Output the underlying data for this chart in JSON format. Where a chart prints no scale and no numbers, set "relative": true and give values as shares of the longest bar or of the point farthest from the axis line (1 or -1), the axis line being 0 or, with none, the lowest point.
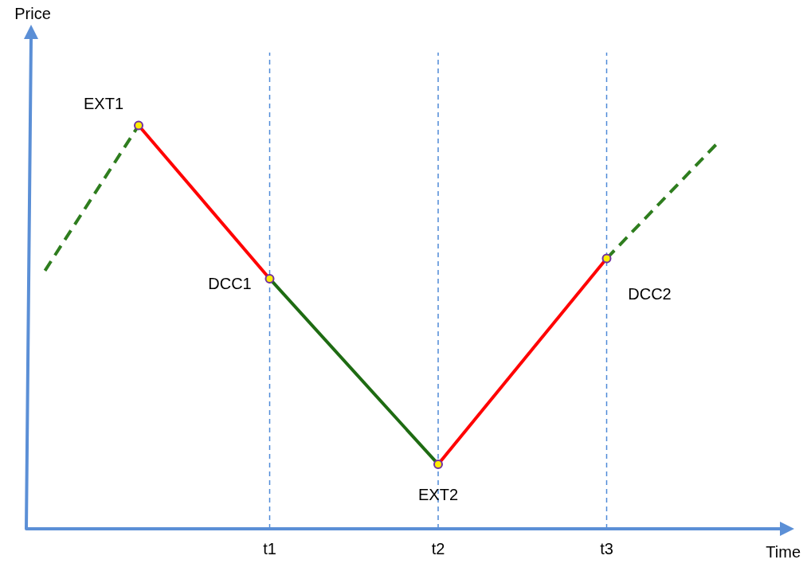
{
  "chart_data": {
    "type": "line",
    "relative": true,
    "xlabel": "Time",
    "categories": [
      null,
      null,
      null,
      null,
      null,
      null,
      null,
      null,
      null,
      null,
      null,
      null,
      null,
      "t1",
      null,
      null,
      null,
      null,
      null,
      null,
      null,
      null,
      "t2",
      null,
      null,
      null,
      null,
      null,
      null,
      null,
      null,
      "t3",
      null,
      null,
      null,
      null,
      null,
      null,
      null,
      null,
      null
    ],
    "grid": false,
    "legend": false,
    "tick_labels": "x",
    "ref_lines": [
      {
        "axis": "x",
        "value": "t1",
        "color": "#4f8ad8",
        "line_style": "dashed"
      },
      {
        "axis": "x",
        "value": "t2",
        "color": "#4f8ad8",
        "line_style": "dashed"
      },
      {
        "axis": "x",
        "value": "t3",
        "color": "#4f8ad8",
        "line_style": "dashed"
      }
    ],
    "series": [
      {
        "color": "#2e7d1e",
        "line_style": "dashed",
        "marker": "none",
        "values": [
          null,
          0.64,
          null,
          null,
          null,
          null,
          1,
          null,
          null,
          null,
          null,
          null,
          null,
          null,
          null,
          null,
          null,
          null,
          null,
          null,
          null,
          null,
          null,
          null,
          null,
          null,
          null,
          null,
          null,
          null,
          null,
          null,
          null,
          null,
          null,
          null,
          null,
          null,
          null,
          null,
          null
        ]
      },
      {
        "color": "#ff0000",
        "line_style": "solid",
        "marker": "none",
        "values": [
          null,
          null,
          null,
          null,
          null,
          null,
          1,
          null,
          null,
          null,
          null,
          null,
          null,
          0.62,
          null,
          null,
          null,
          null,
          null,
          null,
          null,
          null,
          null,
          null,
          null,
          null,
          null,
          null,
          null,
          null,
          null,
          null,
          null,
          null,
          null,
          null,
          null,
          null,
          null,
          null,
          null
        ]
      },
      {
        "color": "#1e6b12",
        "line_style": "solid",
        "marker": "none",
        "values": [
          null,
          null,
          null,
          null,
          null,
          null,
          null,
          null,
          null,
          null,
          null,
          null,
          null,
          0.62,
          null,
          null,
          null,
          null,
          null,
          null,
          null,
          null,
          0.16,
          null,
          null,
          null,
          null,
          null,
          null,
          null,
          null,
          null,
          null,
          null,
          null,
          null,
          null,
          null,
          null,
          null,
          null
        ]
      },
      {
        "color": "#ff0000",
        "line_style": "solid",
        "marker": "none",
        "values": [
          null,
          null,
          null,
          null,
          null,
          null,
          null,
          null,
          null,
          null,
          null,
          null,
          null,
          null,
          null,
          null,
          null,
          null,
          null,
          null,
          null,
          null,
          0.16,
          null,
          null,
          null,
          null,
          null,
          null,
          null,
          null,
          0.67,
          null,
          null,
          null,
          null,
          null,
          null,
          null,
          null,
          null
        ]
      },
      {
        "color": "#2e7d1e",
        "line_style": "dashed",
        "marker": "none",
        "values": [
          null,
          null,
          null,
          null,
          null,
          null,
          null,
          null,
          null,
          null,
          null,
          null,
          null,
          null,
          null,
          null,
          null,
          null,
          null,
          null,
          null,
          null,
          null,
          null,
          null,
          null,
          null,
          null,
          null,
          null,
          null,
          0.67,
          null,
          null,
          null,
          null,
          null,
          0.96,
          null,
          null,
          null
        ]
      },
      {
        "type": "scatter",
        "color": "#ffee00",
        "marker": "circle",
        "values": [
          null,
          null,
          null,
          null,
          null,
          null,
          1,
          null,
          null,
          null,
          null,
          null,
          null,
          0.62,
          null,
          null,
          null,
          null,
          null,
          null,
          null,
          null,
          0.16,
          null,
          null,
          null,
          null,
          null,
          null,
          null,
          null,
          0.67,
          null,
          null,
          null,
          null,
          null,
          null,
          null,
          null,
          null
        ]
      }
    ],
    "annotations": [
      "EXT1",
      "DCC1",
      "EXT2",
      "DCC2",
      "Price"
    ]
  }
}
